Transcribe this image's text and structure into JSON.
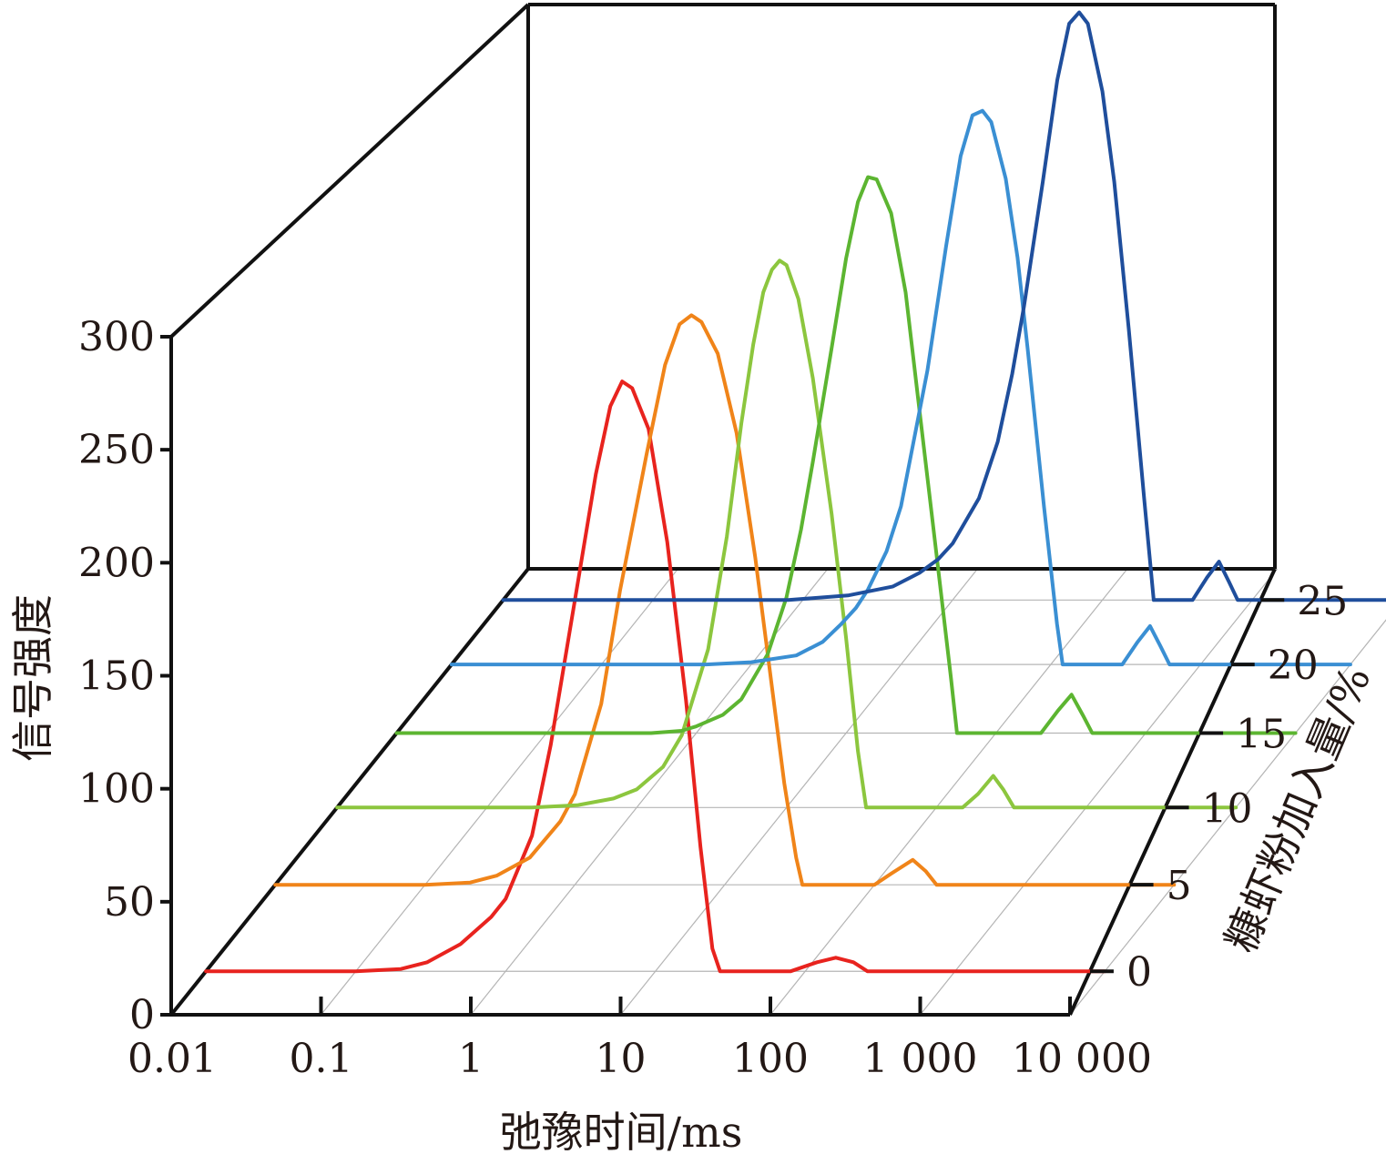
{
  "chart_data": {
    "type": "line",
    "style": "3d-waterfall",
    "xlabel": "弛豫时间/ms",
    "ylabel": "信号强度",
    "zlabel": "糠虾粉加入量/%",
    "x_scale": "log",
    "xlim": [
      0.01,
      10000
    ],
    "ylim": [
      0,
      300
    ],
    "x_ticks": [
      "0.01",
      "0.1",
      "1",
      "10",
      "100",
      "1 000",
      "10 000"
    ],
    "y_ticks": [
      "0",
      "50",
      "100",
      "150",
      "200",
      "250",
      "300"
    ],
    "z_ticks": [
      "0",
      "5",
      "10",
      "15",
      "20",
      "25"
    ],
    "series": [
      {
        "name": "0",
        "color": "#e8231e",
        "points": [
          [
            0.01,
            0
          ],
          [
            0.05,
            0
          ],
          [
            0.1,
            0
          ],
          [
            0.2,
            1
          ],
          [
            0.3,
            4
          ],
          [
            0.5,
            12
          ],
          [
            0.8,
            24
          ],
          [
            1,
            32
          ],
          [
            1.5,
            60
          ],
          [
            2,
            100
          ],
          [
            3,
            170
          ],
          [
            4,
            220
          ],
          [
            5,
            250
          ],
          [
            6,
            261
          ],
          [
            7,
            258
          ],
          [
            9,
            240
          ],
          [
            12,
            190
          ],
          [
            16,
            120
          ],
          [
            20,
            55
          ],
          [
            24,
            10
          ],
          [
            27,
            0
          ],
          [
            50,
            0
          ],
          [
            80,
            0
          ],
          [
            120,
            4
          ],
          [
            160,
            6
          ],
          [
            210,
            4
          ],
          [
            260,
            0
          ],
          [
            1000,
            0
          ],
          [
            10000,
            0
          ]
        ]
      },
      {
        "name": "5",
        "color": "#f08419",
        "points": [
          [
            0.01,
            0
          ],
          [
            0.1,
            0
          ],
          [
            0.2,
            1
          ],
          [
            0.3,
            4
          ],
          [
            0.5,
            12
          ],
          [
            0.8,
            28
          ],
          [
            1,
            40
          ],
          [
            1.5,
            80
          ],
          [
            2,
            130
          ],
          [
            3,
            190
          ],
          [
            4,
            230
          ],
          [
            5,
            248
          ],
          [
            6,
            252
          ],
          [
            7,
            249
          ],
          [
            9,
            235
          ],
          [
            12,
            200
          ],
          [
            16,
            145
          ],
          [
            20,
            95
          ],
          [
            25,
            45
          ],
          [
            30,
            12
          ],
          [
            33,
            0
          ],
          [
            100,
            0
          ],
          [
            130,
            5
          ],
          [
            180,
            11
          ],
          [
            220,
            6
          ],
          [
            260,
            0
          ],
          [
            1000,
            0
          ],
          [
            10000,
            0
          ]
        ]
      },
      {
        "name": "10",
        "color": "#8cc63e",
        "points": [
          [
            0.01,
            0
          ],
          [
            0.2,
            0
          ],
          [
            0.4,
            1
          ],
          [
            0.7,
            4
          ],
          [
            1,
            8
          ],
          [
            1.5,
            18
          ],
          [
            2,
            32
          ],
          [
            3,
            70
          ],
          [
            4,
            120
          ],
          [
            5,
            170
          ],
          [
            6,
            205
          ],
          [
            7,
            228
          ],
          [
            8,
            238
          ],
          [
            9,
            242
          ],
          [
            10,
            240
          ],
          [
            12,
            225
          ],
          [
            15,
            190
          ],
          [
            20,
            130
          ],
          [
            25,
            75
          ],
          [
            30,
            25
          ],
          [
            34,
            0
          ],
          [
            150,
            0
          ],
          [
            190,
            6
          ],
          [
            240,
            14
          ],
          [
            280,
            8
          ],
          [
            330,
            0
          ],
          [
            1000,
            0
          ],
          [
            10000,
            0
          ]
        ]
      },
      {
        "name": "15",
        "color": "#5cb531",
        "points": [
          [
            0.01,
            0
          ],
          [
            0.5,
            0
          ],
          [
            0.8,
            1
          ],
          [
            1,
            3
          ],
          [
            1.5,
            8
          ],
          [
            2,
            15
          ],
          [
            3,
            35
          ],
          [
            4,
            60
          ],
          [
            5,
            90
          ],
          [
            6,
            120
          ],
          [
            8,
            170
          ],
          [
            10,
            210
          ],
          [
            12,
            235
          ],
          [
            14,
            246
          ],
          [
            16,
            245
          ],
          [
            20,
            230
          ],
          [
            25,
            195
          ],
          [
            30,
            150
          ],
          [
            40,
            80
          ],
          [
            50,
            25
          ],
          [
            55,
            0
          ],
          [
            200,
            0
          ],
          [
            260,
            10
          ],
          [
            320,
            17
          ],
          [
            380,
            8
          ],
          [
            440,
            0
          ],
          [
            1000,
            0
          ],
          [
            10000,
            0
          ]
        ]
      },
      {
        "name": "20",
        "color": "#3a8fd3",
        "points": [
          [
            0.01,
            0
          ],
          [
            0.5,
            0
          ],
          [
            1,
            1
          ],
          [
            2,
            4
          ],
          [
            3,
            10
          ],
          [
            4,
            18
          ],
          [
            5,
            25
          ],
          [
            6,
            33
          ],
          [
            8,
            50
          ],
          [
            10,
            70
          ],
          [
            15,
            130
          ],
          [
            20,
            185
          ],
          [
            25,
            225
          ],
          [
            30,
            243
          ],
          [
            35,
            245
          ],
          [
            40,
            240
          ],
          [
            50,
            215
          ],
          [
            60,
            180
          ],
          [
            70,
            140
          ],
          [
            90,
            70
          ],
          [
            110,
            18
          ],
          [
            120,
            0
          ],
          [
            300,
            0
          ],
          [
            380,
            10
          ],
          [
            460,
            17
          ],
          [
            540,
            8
          ],
          [
            620,
            0
          ],
          [
            1000,
            0
          ],
          [
            10000,
            0
          ]
        ]
      },
      {
        "name": "25",
        "color": "#1f4e9c",
        "points": [
          [
            0.01,
            0
          ],
          [
            0.8,
            0
          ],
          [
            2,
            2
          ],
          [
            4,
            6
          ],
          [
            6,
            12
          ],
          [
            8,
            18
          ],
          [
            10,
            25
          ],
          [
            15,
            45
          ],
          [
            20,
            70
          ],
          [
            25,
            100
          ],
          [
            30,
            130
          ],
          [
            40,
            185
          ],
          [
            50,
            230
          ],
          [
            60,
            255
          ],
          [
            70,
            260
          ],
          [
            80,
            255
          ],
          [
            100,
            225
          ],
          [
            120,
            185
          ],
          [
            150,
            120
          ],
          [
            190,
            45
          ],
          [
            220,
            0
          ],
          [
            400,
            0
          ],
          [
            500,
            10
          ],
          [
            600,
            17
          ],
          [
            700,
            8
          ],
          [
            800,
            0
          ],
          [
            1000,
            0
          ],
          [
            10000,
            0
          ]
        ]
      }
    ]
  }
}
